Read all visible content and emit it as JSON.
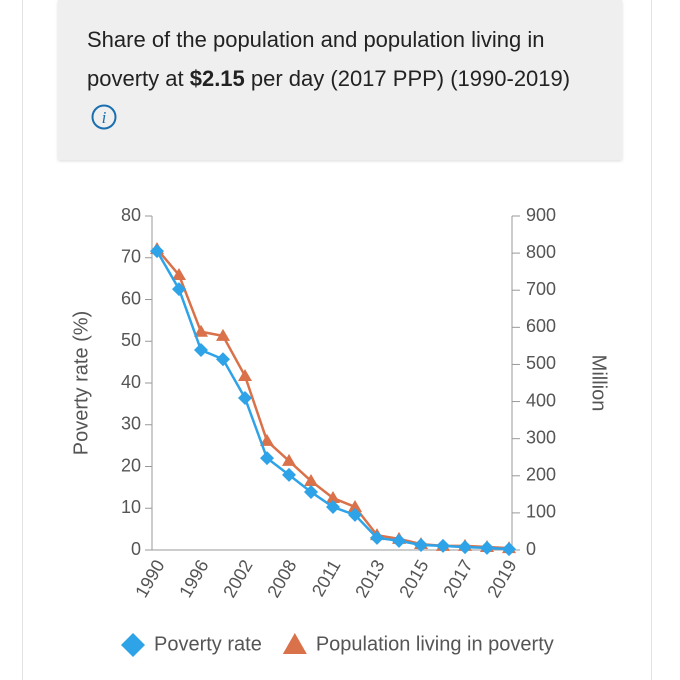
{
  "chart_data": {
    "type": "line",
    "title": [
      "Share of the population and population living in poverty at ",
      "$2.15",
      " per day (2017 PPP) (1990-2019)"
    ],
    "ylabel": "Poverty rate (%)",
    "y2label": "Million",
    "categories": [
      "1990",
      null,
      "1996",
      null,
      "2002",
      null,
      "2008",
      null,
      "2011",
      null,
      "2013",
      null,
      "2015",
      null,
      "2017",
      null,
      "2019"
    ],
    "ylim": [
      0,
      80
    ],
    "yticks": [
      0,
      10,
      20,
      30,
      40,
      50,
      60,
      70,
      80
    ],
    "y2lim": [
      0,
      900
    ],
    "y2ticks": [
      0,
      100,
      200,
      300,
      400,
      500,
      600,
      700,
      800,
      900
    ],
    "series": [
      {
        "name": "Poverty rate",
        "color": "#2ea3e8",
        "marker": "diamond",
        "values": [
          71.6,
          62.5,
          47.9,
          45.7,
          36.4,
          22.0,
          18.0,
          13.9,
          10.3,
          8.4,
          2.9,
          2.2,
          1.2,
          1.0,
          0.7,
          0.5,
          0.2
        ]
      },
      {
        "name": "Population living in poverty",
        "color": "#d9714a",
        "marker": "triangle",
        "axis": "y2",
        "values": [
          811,
          741,
          588,
          577,
          469,
          294,
          240,
          186,
          140,
          116,
          40,
          30,
          16,
          11,
          11,
          8,
          5
        ]
      }
    ]
  }
}
